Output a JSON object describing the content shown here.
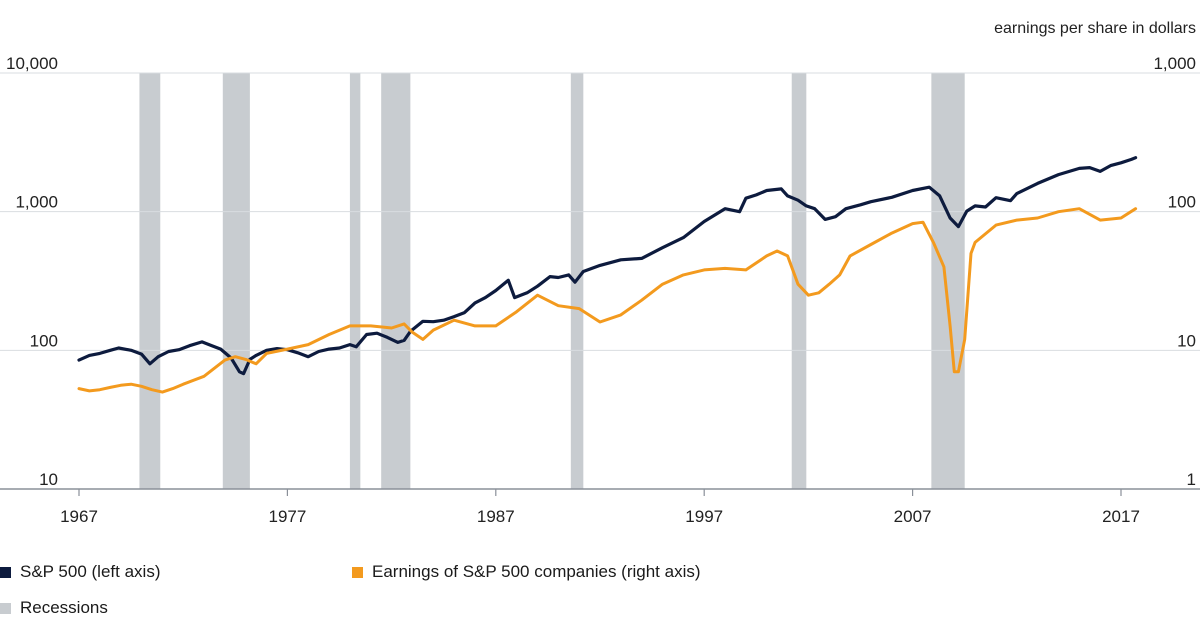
{
  "chart_data": {
    "type": "line",
    "y2_unit_label": "earnings per share in dollars",
    "yscale": "log",
    "y_ticks": [
      "10,000",
      "1,000",
      "100",
      "10"
    ],
    "y_ticks_values": [
      10000,
      1000,
      100,
      10
    ],
    "y2_ticks": [
      "1,000",
      "100",
      "10",
      "1"
    ],
    "y2_ticks_values": [
      1000,
      100,
      10,
      1
    ],
    "ylim": [
      10,
      10000
    ],
    "y2lim": [
      1,
      1000
    ],
    "x_ticks": [
      "1967",
      "1977",
      "1987",
      "1997",
      "2007",
      "2017"
    ],
    "x_ticks_values": [
      1967,
      1977,
      1987,
      1997,
      2007,
      2017
    ],
    "xlim": [
      1967,
      2019
    ],
    "grid": "horizontal",
    "legend_position": "bottom",
    "colors": {
      "sp500": "#0d1b3e",
      "earnings": "#f39a1e",
      "recessions": "#c8ccd0",
      "axis": "#8a9099",
      "grid": "#d9dde1"
    },
    "recessions": [
      [
        1969.9,
        1970.9
      ],
      [
        1973.9,
        1975.2
      ],
      [
        1980.0,
        1980.5
      ],
      [
        1981.5,
        1982.9
      ],
      [
        1990.6,
        1991.2
      ],
      [
        2001.2,
        2001.9
      ],
      [
        2007.9,
        2009.5
      ]
    ],
    "series": [
      {
        "name": "S&P 500 (left axis)",
        "axis": "left",
        "x": [
          1967.0,
          1967.5,
          1968.0,
          1968.5,
          1968.9,
          1969.5,
          1970.0,
          1970.4,
          1970.8,
          1971.3,
          1971.8,
          1972.3,
          1972.9,
          1973.3,
          1973.8,
          1974.3,
          1974.7,
          1974.9,
          1975.2,
          1975.5,
          1976.0,
          1976.5,
          1977.0,
          1977.5,
          1978.0,
          1978.5,
          1979.0,
          1979.5,
          1980.0,
          1980.3,
          1980.8,
          1981.3,
          1981.8,
          1982.3,
          1982.6,
          1982.9,
          1983.5,
          1984.0,
          1984.5,
          1985.0,
          1985.5,
          1986.0,
          1986.5,
          1987.0,
          1987.6,
          1987.9,
          1988.5,
          1989.0,
          1989.6,
          1990.0,
          1990.5,
          1990.8,
          1991.2,
          1992.0,
          1993.0,
          1994.0,
          1995.0,
          1996.0,
          1997.0,
          1998.0,
          1998.7,
          1999.0,
          1999.5,
          2000.0,
          2000.7,
          2001.0,
          2001.5,
          2001.9,
          2002.3,
          2002.8,
          2003.3,
          2003.8,
          2004.5,
          2005.0,
          2006.0,
          2007.0,
          2007.8,
          2008.3,
          2008.8,
          2009.2,
          2009.6,
          2010.0,
          2010.5,
          2011.0,
          2011.7,
          2012.0,
          2013.0,
          2014.0,
          2015.0,
          2015.5,
          2016.0,
          2016.5,
          2017.0,
          2017.5,
          2017.7
        ],
        "values": [
          85,
          92,
          95,
          100,
          104,
          100,
          94,
          80,
          90,
          98,
          101,
          108,
          115,
          109,
          102,
          88,
          70,
          68,
          86,
          92,
          100,
          103,
          101,
          96,
          90,
          98,
          102,
          104,
          110,
          106,
          130,
          133,
          124,
          114,
          118,
          137,
          162,
          161,
          165,
          175,
          187,
          220,
          240,
          270,
          320,
          240,
          260,
          290,
          340,
          335,
          350,
          310,
          370,
          410,
          450,
          460,
          550,
          650,
          850,
          1050,
          1000,
          1250,
          1320,
          1420,
          1460,
          1300,
          1210,
          1100,
          1050,
          880,
          920,
          1050,
          1120,
          1180,
          1270,
          1420,
          1500,
          1300,
          900,
          780,
          1010,
          1100,
          1080,
          1260,
          1200,
          1350,
          1600,
          1850,
          2050,
          2080,
          1950,
          2150,
          2250,
          2380,
          2450
        ]
      },
      {
        "name": "Earnings of S&P 500 companies (right axis)",
        "axis": "right",
        "x": [
          1967.0,
          1967.5,
          1968.0,
          1968.5,
          1969.0,
          1969.5,
          1970.0,
          1970.5,
          1971.0,
          1971.5,
          1972.0,
          1973.0,
          1974.0,
          1974.5,
          1975.0,
          1975.5,
          1976.0,
          1977.0,
          1978.0,
          1979.0,
          1980.0,
          1981.0,
          1982.0,
          1982.6,
          1983.0,
          1983.5,
          1984.0,
          1985.0,
          1986.0,
          1987.0,
          1988.0,
          1989.0,
          1990.0,
          1991.0,
          1992.0,
          1993.0,
          1994.0,
          1995.0,
          1996.0,
          1997.0,
          1998.0,
          1999.0,
          2000.0,
          2000.5,
          2001.0,
          2001.5,
          2002.0,
          2002.5,
          2003.0,
          2003.5,
          2004.0,
          2005.0,
          2006.0,
          2007.0,
          2007.5,
          2008.0,
          2008.5,
          2008.8,
          2009.0,
          2009.2,
          2009.5,
          2009.8,
          2010.0,
          2011.0,
          2012.0,
          2013.0,
          2014.0,
          2015.0,
          2016.0,
          2017.0,
          2017.7
        ],
        "values": [
          5.3,
          5.1,
          5.2,
          5.4,
          5.6,
          5.7,
          5.5,
          5.2,
          5.0,
          5.3,
          5.7,
          6.5,
          8.5,
          9.0,
          8.6,
          8.0,
          9.5,
          10.2,
          11.0,
          13.0,
          15.0,
          15.0,
          14.5,
          15.5,
          13.5,
          12.0,
          14.0,
          16.5,
          15.0,
          15.0,
          19.0,
          25.0,
          21.0,
          20.0,
          16.0,
          18.0,
          23.0,
          30.0,
          35.0,
          38.0,
          39.0,
          38.0,
          48.0,
          52.0,
          48.0,
          30.0,
          25.0,
          26.0,
          30.0,
          35.0,
          48.0,
          58.0,
          70.0,
          82.0,
          84.0,
          60.0,
          40.0,
          15.0,
          7.0,
          7.0,
          12.0,
          50.0,
          60.0,
          80.0,
          87.0,
          90.0,
          100.0,
          105.0,
          87.0,
          90.0,
          105.0
        ]
      }
    ]
  },
  "legend": {
    "sp500_label": "S&P 500 (left axis)",
    "earnings_label": "Earnings of S&P 500 companies (right axis)",
    "recessions_label": "Recessions"
  }
}
